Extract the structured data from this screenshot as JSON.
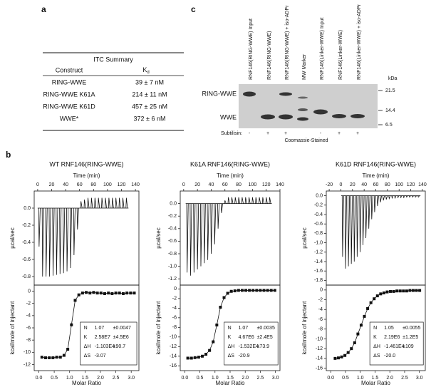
{
  "panel_a": {
    "label": "a",
    "table": {
      "title": "ITC Summary",
      "headers": [
        "Construct",
        "K"
      ],
      "kd_subscript": "d",
      "rows": [
        [
          "RING-WWE",
          "39 ± 7 nM"
        ],
        [
          "RING-WWE K61A",
          "214 ± 11 nM"
        ],
        [
          "RING-WWE K61D",
          "457 ± 25 nM"
        ],
        [
          "WWE*",
          "372 ± 6 nM"
        ]
      ]
    }
  },
  "panel_c": {
    "label": "c",
    "lanes": [
      "RNF146(RING-WWE) Input",
      "RNF146(RING-WWE)",
      "RNF146(RING-WWE) + iso-ADPr",
      "MW Marker",
      "RNF146(Linker-WWE) Input",
      "RNF146(Linker-WWE)",
      "RNF146(Linker-WWE) + iso-ADPr"
    ],
    "row_labels": [
      "RING-WWE",
      "WWE"
    ],
    "kda_label": "kDa",
    "markers": [
      21.5,
      14.4,
      6.5
    ],
    "subtilisin_label": "Subtilisin:",
    "subtilisin": [
      "-",
      "+",
      "+",
      null,
      "-",
      "+",
      "+"
    ],
    "stain": "Coomassie-Stained"
  },
  "panel_b": {
    "label": "b",
    "plots": [
      {
        "title": "WT RNF146(RING-WWE)",
        "top": {
          "xlabel": "Time (min)",
          "ylabel": "µcal/sec",
          "xlim": [
            -5,
            145
          ],
          "ylim": [
            -0.9,
            0.2
          ],
          "xticks": [
            0,
            20,
            40,
            60,
            80,
            100,
            120,
            140
          ],
          "yticks": [
            {
              "value": 0,
              "label": "0.0"
            },
            -0.2,
            -0.4,
            -0.6,
            -0.8
          ],
          "times": [
            2,
            7,
            12,
            17,
            22,
            27,
            32,
            37,
            42,
            47,
            52,
            57,
            62,
            67,
            72,
            77,
            82,
            87,
            92,
            97,
            102,
            107,
            112,
            117,
            122,
            127
          ],
          "peaks": [
            -0.45,
            -0.8,
            -0.8,
            -0.8,
            -0.79,
            -0.78,
            -0.77,
            -0.76,
            -0.74,
            -0.7,
            -0.55,
            -0.25,
            0.08,
            0.1,
            0.12,
            0.12,
            0.12,
            0.12,
            0.12,
            0.12,
            0.12,
            0.12,
            0.12,
            0.12,
            0.12,
            0.12
          ]
        },
        "bottom": {
          "xlabel": "Molar Ratio",
          "ylabel": "kcal/mole of injectant",
          "xlim": [
            -0.15,
            3.25
          ],
          "ylim": [
            -13,
            1
          ],
          "xticks": [
            {
              "value": 0,
              "label": "0.0"
            },
            0.5,
            {
              "value": 1,
              "label": "1.0"
            },
            1.5,
            {
              "value": 2,
              "label": "2.0"
            },
            2.5,
            {
              "value": 3,
              "label": "3.0"
            }
          ],
          "yticks": [
            0,
            -2,
            -4,
            -6,
            -8,
            -10,
            -12
          ],
          "x": [
            0.1,
            0.22,
            0.34,
            0.46,
            0.58,
            0.7,
            0.82,
            0.94,
            1.06,
            1.18,
            1.3,
            1.42,
            1.54,
            1.66,
            1.78,
            1.9,
            2.02,
            2.14,
            2.26,
            2.38,
            2.5,
            2.62,
            2.74,
            2.86,
            2.98,
            3.1
          ],
          "values": [
            -10.8,
            -10.9,
            -10.9,
            -10.9,
            -10.8,
            -10.8,
            -10.5,
            -9.5,
            -5.5,
            -1.5,
            -0.6,
            -0.3,
            -0.2,
            -0.3,
            -0.2,
            -0.3,
            -0.3,
            -0.4,
            -0.3,
            -0.4,
            -0.3,
            -0.3,
            -0.4,
            -0.3,
            -0.3,
            -0.3
          ]
        },
        "fit": [
          [
            "N",
            "1.07",
            "±0.0047"
          ],
          [
            "K",
            "2.58E7",
            "±4.5E6"
          ],
          [
            "ΔH",
            "-1.103E4",
            "±90.7"
          ],
          [
            "ΔS",
            "-3.07"
          ]
        ]
      },
      {
        "title": "K61A RNF146(RING-WWE)",
        "top": {
          "xlabel": "Time (min)",
          "ylabel": "µcal/sec",
          "xlim": [
            -5,
            140
          ],
          "ylim": [
            -1.3,
            0.2
          ],
          "xticks": [
            0,
            20,
            40,
            60,
            80,
            100,
            120,
            140
          ],
          "yticks": [
            {
              "value": 0,
              "label": "0.0"
            },
            -0.2,
            -0.4,
            -0.6,
            -0.8,
            {
              "value": -1,
              "label": "-1.0"
            },
            -1.2
          ],
          "times": [
            5,
            10,
            15,
            20,
            25,
            30,
            35,
            40,
            45,
            50,
            55,
            60,
            65,
            70,
            75,
            80,
            85,
            90,
            95,
            100,
            105,
            110,
            115,
            120,
            125
          ],
          "peaks": [
            -1.1,
            -1.15,
            -1.1,
            -1.05,
            -1.0,
            -0.95,
            -0.9,
            -0.8,
            -0.65,
            -0.4,
            -0.15,
            0.05,
            0.1,
            0.1,
            0.1,
            0.1,
            0.1,
            0.1,
            0.1,
            0.1,
            0.1,
            0.1,
            0.1,
            0.1,
            0.1
          ]
        },
        "bottom": {
          "xlabel": "Molar Ratio",
          "ylabel": "kcal/mole of injectant",
          "xlim": [
            -0.15,
            3.15
          ],
          "ylim": [
            -17,
            0.8
          ],
          "xticks": [
            {
              "value": 0,
              "label": "0.0"
            },
            0.5,
            {
              "value": 1,
              "label": "1.0"
            },
            1.5,
            {
              "value": 2,
              "label": "2.0"
            },
            2.5,
            {
              "value": 3,
              "label": "3.0"
            }
          ],
          "yticks": [
            0,
            -2,
            -4,
            -6,
            -8,
            -10,
            -12,
            -14,
            -16
          ],
          "x": [
            0.1,
            0.22,
            0.34,
            0.46,
            0.58,
            0.7,
            0.82,
            0.94,
            1.06,
            1.18,
            1.3,
            1.42,
            1.54,
            1.66,
            1.78,
            1.9,
            2.02,
            2.14,
            2.26,
            2.38,
            2.5,
            2.62,
            2.74,
            2.86,
            2.98
          ],
          "values": [
            -14.4,
            -14.4,
            -14.3,
            -14.2,
            -14.0,
            -13.6,
            -12.8,
            -11.0,
            -7.5,
            -3.8,
            -1.8,
            -0.9,
            -0.5,
            -0.4,
            -0.3,
            -0.3,
            -0.3,
            -0.3,
            -0.3,
            -0.3,
            -0.3,
            -0.3,
            -0.3,
            -0.3,
            -0.3
          ]
        },
        "fit": [
          [
            "N",
            "1.07",
            "±0.0035"
          ],
          [
            "K",
            "4.67E6",
            "±2.4E5"
          ],
          [
            "ΔH",
            "-1.532E4",
            "±73.9"
          ],
          [
            "ΔS",
            "-20.9"
          ]
        ]
      },
      {
        "title": "K61D RNF146(RING-WWE)",
        "top": {
          "xlabel": "Time (min)",
          "ylabel": "µcal/sec",
          "xlim": [
            -25,
            145
          ],
          "ylim": [
            -1.9,
            0.1
          ],
          "xticks": [
            -20,
            0,
            20,
            40,
            60,
            80,
            100,
            120,
            140
          ],
          "yticks": [
            {
              "value": 0,
              "label": "0.0"
            },
            -0.2,
            -0.4,
            -0.6,
            -0.8,
            {
              "value": -1,
              "label": "-1.0"
            },
            -1.2,
            -1.4,
            -1.6,
            -1.8
          ],
          "times": [
            3,
            8,
            13,
            18,
            23,
            28,
            33,
            38,
            43,
            48,
            53,
            58,
            63,
            68,
            73,
            78,
            83,
            88,
            93,
            98,
            103,
            108,
            113,
            118,
            123,
            128,
            133
          ],
          "peaks": [
            -1.3,
            -1.55,
            -1.5,
            -1.45,
            -1.4,
            -1.3,
            -1.2,
            -1.05,
            -0.9,
            -0.7,
            -0.5,
            -0.35,
            -0.22,
            -0.14,
            -0.1,
            -0.08,
            -0.06,
            -0.05,
            -0.05,
            -0.04,
            -0.04,
            -0.04,
            -0.03,
            -0.03,
            -0.03,
            -0.03,
            -0.03
          ]
        },
        "bottom": {
          "xlabel": "Molar Ratio",
          "ylabel": "kcal/mole of injectant",
          "xlim": [
            -0.15,
            3.2
          ],
          "ylim": [
            -16.5,
            1
          ],
          "xticks": [
            {
              "value": 0,
              "label": "0.0"
            },
            0.5,
            {
              "value": 1,
              "label": "1.0"
            },
            1.5,
            {
              "value": 2,
              "label": "2.0"
            },
            2.5,
            {
              "value": 3,
              "label": "3.0"
            }
          ],
          "yticks": [
            0,
            -2,
            -4,
            -6,
            -8,
            -10,
            -12,
            -14,
            -16
          ],
          "x": [
            0.15,
            0.26,
            0.37,
            0.48,
            0.59,
            0.7,
            0.81,
            0.92,
            1.03,
            1.14,
            1.25,
            1.36,
            1.47,
            1.58,
            1.69,
            1.8,
            1.91,
            2.02,
            2.13,
            2.24,
            2.35,
            2.46,
            2.57,
            2.68,
            2.79,
            2.9,
            3.01
          ],
          "values": [
            -14.0,
            -13.9,
            -13.7,
            -13.4,
            -12.8,
            -12.0,
            -10.8,
            -9.0,
            -7.2,
            -5.4,
            -3.8,
            -2.6,
            -1.8,
            -1.2,
            -0.8,
            -0.6,
            -0.4,
            -0.3,
            -0.3,
            -0.2,
            -0.2,
            -0.2,
            -0.2,
            -0.1,
            -0.1,
            -0.1,
            -0.1
          ]
        },
        "fit": [
          [
            "N",
            "1.05",
            "±0.0055"
          ],
          [
            "K",
            "2.19E6",
            "±1.2E5"
          ],
          [
            "ΔH",
            "-1.461E4",
            "±109"
          ],
          [
            "ΔS",
            "-20.0"
          ]
        ]
      }
    ]
  }
}
